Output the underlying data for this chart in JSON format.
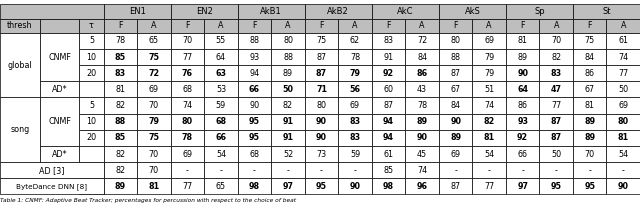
{
  "datasets": [
    "EN1",
    "EN2",
    "AkB1",
    "AkB2",
    "AkC",
    "AkS",
    "Sp",
    "St"
  ],
  "rows": [
    [
      "global",
      "CNMF",
      "5",
      "78",
      "65",
      "70",
      "55",
      "88",
      "80",
      "75",
      "62",
      "83",
      "72",
      "80",
      "69",
      "81",
      "70",
      "75",
      "61"
    ],
    [
      "global",
      "CNMF",
      "10",
      "85",
      "75",
      "77",
      "64",
      "93",
      "88",
      "87",
      "78",
      "91",
      "84",
      "88",
      "79",
      "89",
      "82",
      "84",
      "74"
    ],
    [
      "global",
      "CNMF",
      "20",
      "83",
      "72",
      "76",
      "63",
      "94",
      "89",
      "87",
      "79",
      "92",
      "86",
      "87",
      "79",
      "90",
      "83",
      "86",
      "77"
    ],
    [
      "global",
      "AD*",
      "",
      "81",
      "69",
      "68",
      "53",
      "66",
      "50",
      "71",
      "56",
      "60",
      "43",
      "67",
      "51",
      "64",
      "47",
      "67",
      "50"
    ],
    [
      "song",
      "CNMF",
      "5",
      "82",
      "70",
      "74",
      "59",
      "90",
      "82",
      "80",
      "69",
      "87",
      "78",
      "84",
      "74",
      "86",
      "77",
      "81",
      "69"
    ],
    [
      "song",
      "CNMF",
      "10",
      "88",
      "79",
      "80",
      "68",
      "95",
      "91",
      "90",
      "83",
      "94",
      "89",
      "90",
      "82",
      "93",
      "87",
      "89",
      "80"
    ],
    [
      "song",
      "CNMF",
      "20",
      "85",
      "75",
      "78",
      "66",
      "95",
      "91",
      "90",
      "83",
      "94",
      "90",
      "89",
      "81",
      "92",
      "87",
      "89",
      "81"
    ],
    [
      "song",
      "AD*",
      "",
      "82",
      "70",
      "69",
      "54",
      "68",
      "52",
      "73",
      "59",
      "61",
      "45",
      "69",
      "54",
      "66",
      "50",
      "70",
      "54"
    ],
    [
      "AD [3]",
      "",
      "",
      "82",
      "70",
      "-",
      "-",
      "-",
      "-",
      "-",
      "-",
      "85",
      "74",
      "-",
      "-",
      "-",
      "-",
      "-",
      "-"
    ],
    [
      "ByteDance DNN [8]",
      "",
      "",
      "89",
      "81",
      "77",
      "65",
      "98",
      "97",
      "95",
      "90",
      "98",
      "96",
      "87",
      "77",
      "97",
      "95",
      "95",
      "90"
    ]
  ],
  "bold": [
    [
      1,
      [
        0,
        1
      ]
    ],
    [
      2,
      [
        0,
        1,
        2,
        3,
        6,
        7,
        8,
        9,
        12,
        13
      ]
    ],
    [
      3,
      [
        4,
        5,
        6,
        7,
        12,
        13
      ]
    ],
    [
      5,
      [
        0,
        1,
        2,
        3,
        4,
        5,
        6,
        7,
        8,
        9,
        10,
        11,
        12,
        13,
        14,
        15
      ]
    ],
    [
      6,
      [
        0,
        1,
        2,
        3,
        4,
        5,
        6,
        7,
        8,
        9,
        10,
        11,
        12,
        13,
        14,
        15
      ]
    ],
    [
      9,
      [
        0,
        1,
        4,
        5,
        6,
        7,
        8,
        9,
        12,
        13,
        14,
        15
      ]
    ]
  ],
  "caption": "Table 1: CNMF: Adaptive Beat Tracker; percentages for percussion with respect to the choice of beat",
  "header_bg": "#bebebe",
  "white": "#ffffff"
}
